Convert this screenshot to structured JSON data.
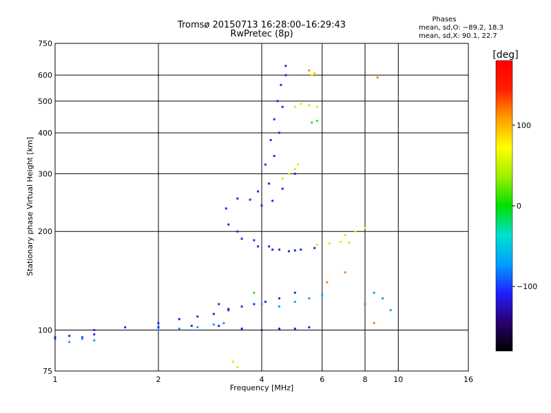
{
  "chart_data": {
    "type": "scatter",
    "title": "Tromsø 20150713 16:28:00–16:29:43",
    "subtitle": "RwPretec (8p)",
    "xlabel": "Frequency [MHz]",
    "ylabel": "Stationary phase Virtual Height [km]",
    "x_scale": "log",
    "y_scale": "log",
    "xlim": [
      1,
      16
    ],
    "ylim": [
      75,
      750
    ],
    "x_ticks": [
      1,
      2,
      4,
      6,
      8,
      10,
      16
    ],
    "x_tick_labels": [
      "1",
      "2",
      "4",
      "6",
      "8",
      "10",
      "16"
    ],
    "y_ticks": [
      75,
      100,
      200,
      300,
      400,
      500,
      600,
      750
    ],
    "y_tick_labels": [
      "75",
      "100",
      "200",
      "300",
      "400",
      "500",
      "600",
      "750"
    ],
    "grid": true,
    "phase_stats": {
      "title": "Phases",
      "line_o": "mean, sd,O: −89.2, 18.3",
      "line_x": "mean, sd,X:  90.1, 22.7"
    },
    "colorbar": {
      "label": "[deg]",
      "range": [
        -180,
        180
      ],
      "ticks": [
        100,
        0,
        -100
      ],
      "tick_labels": [
        "100",
        "0",
        "−100"
      ],
      "colors": [
        "#000000",
        "#2b006e",
        "#1f1fff",
        "#00a0ff",
        "#00e0d0",
        "#00e000",
        "#9cf000",
        "#ffff00",
        "#ffa000",
        "#ff2000",
        "#ff0000"
      ]
    },
    "series": [
      {
        "traces": [
          {
            "x": [
              1.0,
              1.1,
              1.2,
              1.3
            ],
            "y": [
              95,
              96,
              95,
              97
            ]
          },
          {
            "x": [
              1.3,
              1.6,
              2.0,
              2.5,
              3.0,
              3.5,
              4.0,
              4.5,
              5.0,
              5.5
            ],
            "y": [
              100,
              102,
              102,
              103,
              103,
              101,
              100,
              101,
              101,
              102
            ]
          },
          {
            "x": [
              3.15,
              3.4,
              3.7,
              4.0,
              4.3,
              4.6,
              5.0
            ],
            "y": [
              235,
              252,
              250,
              240,
              248,
              270,
              300
            ]
          },
          {
            "x": [
              3.2,
              3.5,
              3.9,
              4.3,
              4.8,
              5.2,
              5.7
            ],
            "y": [
              210,
              190,
              180,
              176,
              174,
              176,
              178
            ]
          },
          {
            "x": [
              3.4,
              3.8,
              4.2,
              4.5,
              5.0
            ],
            "y": [
              200,
              188,
              180,
              176,
              175
            ]
          },
          {
            "x": [
              3.9,
              4.1,
              4.25,
              4.35,
              4.45,
              4.55,
              4.7
            ],
            "y": [
              265,
              320,
              380,
              440,
              500,
              560,
              640
            ]
          },
          {
            "x": [
              4.2,
              4.35,
              4.5,
              4.6,
              4.7
            ],
            "y": [
              280,
              340,
              400,
              480,
              600
            ]
          },
          {
            "x": [
              3.0,
              3.2,
              3.5,
              3.8,
              4.1,
              4.5,
              5.0
            ],
            "y": [
              120,
              116,
              118,
              120,
              122,
              125,
              130
            ]
          },
          {
            "x": [
              2.0,
              2.3,
              2.6,
              2.9,
              3.2
            ],
            "y": [
              105,
              108,
              110,
              112,
              115
            ]
          }
        ],
        "color": "#1e2ee6"
      },
      {
        "traces": [
          {
            "x": [
              1.0,
              1.1,
              1.2,
              1.3
            ],
            "y": [
              94,
              92,
              94,
              93
            ]
          },
          {
            "x": [
              2.0,
              2.3,
              2.6,
              2.9,
              3.1
            ],
            "y": [
              100,
              101,
              102,
              104,
              105
            ]
          },
          {
            "x": [
              4.0,
              4.5,
              5.0,
              5.5,
              6.0
            ],
            "y": [
              120,
              118,
              122,
              125,
              128
            ]
          },
          {
            "x": [
              8.0,
              8.5,
              9.0,
              9.5
            ],
            "y": [
              120,
              130,
              125,
              115
            ]
          }
        ],
        "color": "#19a0f0"
      },
      {
        "traces": [
          {
            "x": [
              5.0,
              5.2,
              5.5,
              5.8
            ],
            "y": [
              480,
              490,
              485,
              480
            ]
          },
          {
            "x": [
              4.6,
              4.8,
              5.0,
              5.1
            ],
            "y": [
              290,
              300,
              310,
              320
            ]
          },
          {
            "x": [
              5.8,
              6.3,
              6.8,
              7.2
            ],
            "y": [
              182,
              184,
              186,
              185
            ]
          },
          {
            "x": [
              5.6,
              5.7
            ],
            "y": [
              600,
              610
            ]
          },
          {
            "x": [
              3.3,
              3.4
            ],
            "y": [
              80,
              77
            ]
          }
        ],
        "color": "#e6e61a"
      },
      {
        "traces": [
          {
            "x": [
              7.0,
              7.5,
              8.0
            ],
            "y": [
              195,
              200,
              205
            ]
          }
        ],
        "color": "#d4f01a"
      },
      {
        "traces": [
          {
            "x": [
              5.5,
              5.7
            ],
            "y": [
              620,
              600
            ]
          },
          {
            "x": [
              6.2,
              7.0,
              8.5
            ],
            "y": [
              140,
              150,
              105
            ]
          },
          {
            "x": [
              8.7
            ],
            "y": [
              590
            ]
          }
        ],
        "color": "#ff8000"
      },
      {
        "traces": [
          {
            "x": [
              5.6,
              5.8
            ],
            "y": [
              430,
              435
            ]
          },
          {
            "x": [
              3.8
            ],
            "y": [
              130
            ]
          }
        ],
        "color": "#30e030"
      }
    ]
  }
}
